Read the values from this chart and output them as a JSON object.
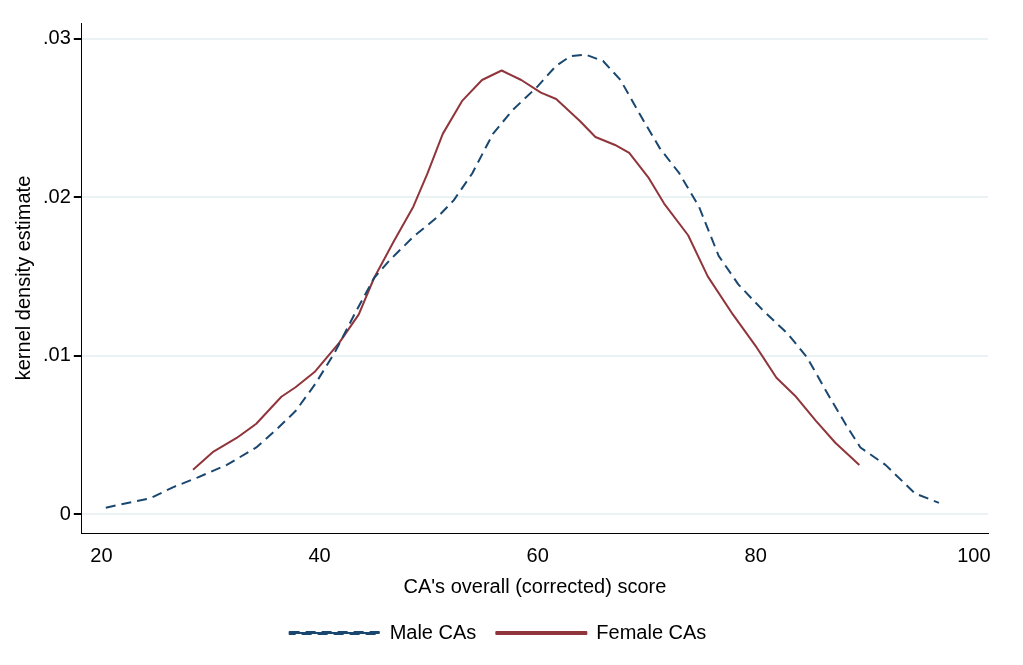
{
  "chart_data": {
    "type": "line",
    "xlabel": "CA's overall (corrected) score",
    "ylabel": "kernel density estimate",
    "xlim": [
      18.2,
      101.3
    ],
    "xticks": [
      20,
      40,
      60,
      80,
      100
    ],
    "ylim": [
      -0.0012,
      0.031
    ],
    "yticks": [
      {
        "value": 0,
        "label": "0"
      },
      {
        "value": 0.01,
        "label": ".01"
      },
      {
        "value": 0.02,
        "label": ".02"
      },
      {
        "value": 0.03,
        "label": ".03"
      }
    ],
    "grid": "y",
    "legend": "bottom",
    "marker": "none",
    "series": [
      {
        "name": "Male CAs",
        "color": "#1a476f",
        "line_style": "dashed",
        "x": [
          20.4,
          24.5,
          26.6,
          28.8,
          31.5,
          34.2,
          36,
          37.8,
          39.6,
          41.4,
          43.2,
          45,
          46.4,
          48.6,
          50.9,
          52.3,
          54,
          55.9,
          57.7,
          60,
          61.7,
          63,
          64.4,
          66,
          67.6,
          69.4,
          71.2,
          73,
          74.8,
          76.6,
          78.4,
          80.6,
          82.9,
          84.7,
          86.5,
          88.3,
          89.6,
          91.9,
          94.6,
          96.8
        ],
        "values": [
          0.0004,
          0.001,
          0.0017,
          0.0023,
          0.0031,
          0.0042,
          0.0053,
          0.0065,
          0.0082,
          0.0102,
          0.0126,
          0.0149,
          0.016,
          0.0175,
          0.0188,
          0.0198,
          0.0215,
          0.024,
          0.0255,
          0.027,
          0.0283,
          0.0289,
          0.029,
          0.0286,
          0.0274,
          0.0252,
          0.0231,
          0.0215,
          0.0194,
          0.0163,
          0.0145,
          0.0129,
          0.0114,
          0.0099,
          0.0077,
          0.0056,
          0.0042,
          0.0031,
          0.0013,
          0.0007
        ]
      },
      {
        "name": "Female CAs",
        "color": "#90353b",
        "line_style": "solid",
        "x": [
          28.4,
          30.2,
          32.4,
          34.2,
          36.5,
          37.8,
          39.6,
          41.8,
          43.6,
          45,
          46.8,
          48.6,
          49.9,
          51.3,
          53.1,
          54.9,
          56.7,
          58.5,
          60.3,
          61.7,
          63.9,
          65.3,
          67.1,
          68.4,
          70.2,
          71.6,
          73.8,
          75.6,
          77.9,
          80.1,
          81.9,
          83.7,
          85.5,
          87.3,
          89.5
        ],
        "values": [
          0.0028,
          0.0039,
          0.0048,
          0.0057,
          0.0074,
          0.008,
          0.009,
          0.0108,
          0.0126,
          0.0149,
          0.0172,
          0.0194,
          0.0215,
          0.024,
          0.0261,
          0.0274,
          0.028,
          0.0274,
          0.0266,
          0.0262,
          0.0248,
          0.0238,
          0.0233,
          0.0228,
          0.0212,
          0.0196,
          0.0176,
          0.015,
          0.0126,
          0.0105,
          0.0086,
          0.0074,
          0.0059,
          0.0045,
          0.0031
        ]
      }
    ]
  }
}
